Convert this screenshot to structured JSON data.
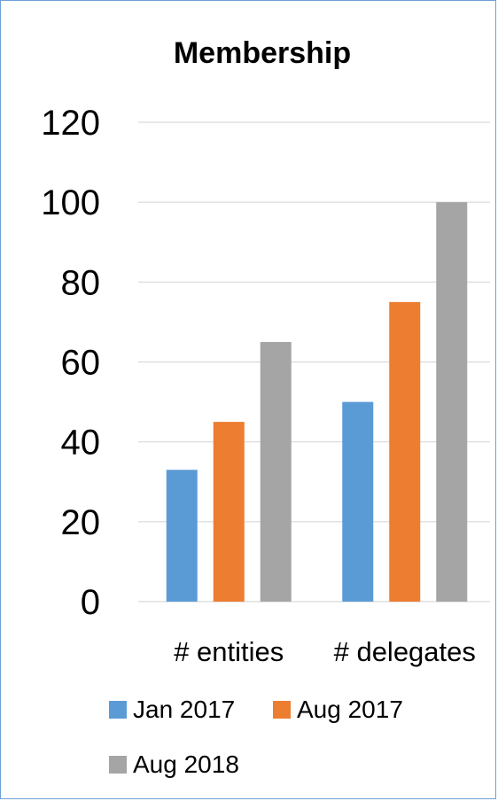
{
  "chart_data": {
    "type": "bar",
    "title": "Membership",
    "categories": [
      "# entities",
      "# delegates"
    ],
    "series": [
      {
        "name": "Jan 2017",
        "values": [
          33,
          50
        ],
        "color": "#5b9bd5"
      },
      {
        "name": "Aug 2017",
        "values": [
          45,
          75
        ],
        "color": "#ed7d31"
      },
      {
        "name": "Aug 2018",
        "values": [
          65,
          100
        ],
        "color": "#a5a5a5"
      }
    ],
    "ylim": [
      0,
      120
    ],
    "yticks": [
      0,
      20,
      40,
      60,
      80,
      100,
      120
    ],
    "grid": true,
    "gridline_color": "#d9d9d9",
    "legend_position": "bottom",
    "xlabel": "",
    "ylabel": ""
  }
}
